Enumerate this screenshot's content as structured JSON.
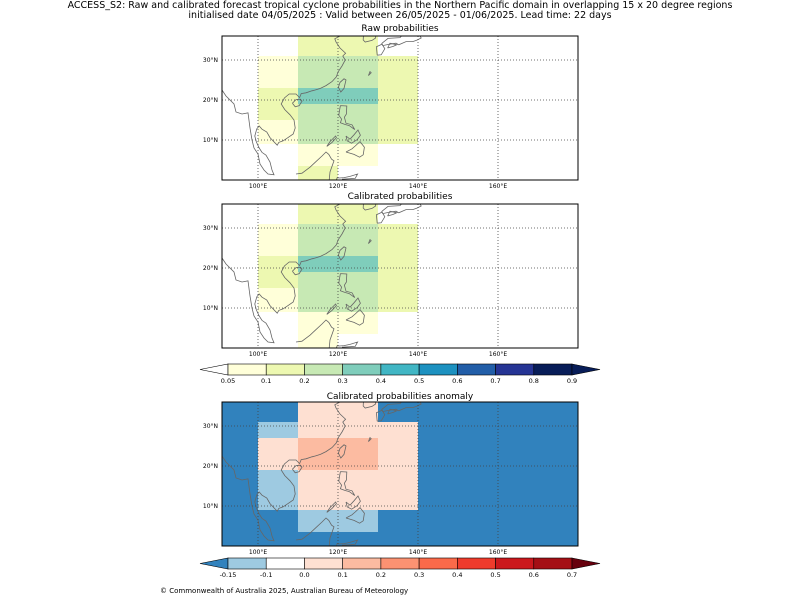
{
  "header": {
    "line1": "ACCESS_S2: Raw and calibrated forecast tropical cyclone probabilities in the Northern Pacific domain in overlapping 15 x 20 degree regions",
    "line2": "initialised date 04/05/2025 :  Valid between 26/05/2025 - 01/06/2025. Lead time: 22 days"
  },
  "credit": "© Commonwealth of Australia 2025, Australian Bureau of Meteorology",
  "chart_data": [
    {
      "type": "heatmap",
      "title": "Raw probabilities",
      "lon_ticks": [
        "100°E",
        "120°E",
        "140°E",
        "160°E"
      ],
      "lat_ticks": [
        "10°N",
        "20°N",
        "30°N"
      ],
      "x_bins": [
        "100-110°E",
        "110-120°E",
        "120-130°E",
        "130-140°E"
      ],
      "y_bins": [
        "32-38°N",
        "27-32°N",
        "22-27°N",
        "17-22°N",
        "12-17°N",
        "7-12°N",
        "2-7°N",
        "0-2°N"
      ],
      "values": [
        [
          null,
          0.15,
          0.15,
          null
        ],
        [
          0.05,
          0.25,
          0.25,
          0.15
        ],
        [
          0.05,
          0.25,
          0.25,
          0.15
        ],
        [
          0.15,
          0.35,
          0.35,
          0.15
        ],
        [
          0.15,
          0.25,
          0.25,
          0.15
        ],
        [
          0.05,
          0.25,
          0.25,
          0.15
        ],
        [
          null,
          0.05,
          0.05,
          null
        ],
        [
          null,
          0.15,
          null,
          null
        ]
      ]
    },
    {
      "type": "heatmap",
      "title": "Calibrated probabilities",
      "lon_ticks": [
        "100°E",
        "120°E",
        "140°E",
        "160°E"
      ],
      "lat_ticks": [
        "10°N",
        "20°N",
        "30°N"
      ],
      "x_bins": [
        "100-110°E",
        "110-120°E",
        "120-130°E",
        "130-140°E"
      ],
      "y_bins": [
        "32-38°N",
        "27-32°N",
        "22-27°N",
        "17-22°N",
        "12-17°N",
        "7-12°N",
        "2-7°N",
        "0-2°N"
      ],
      "values": [
        [
          null,
          0.15,
          0.15,
          null
        ],
        [
          0.05,
          0.25,
          0.25,
          0.15
        ],
        [
          0.05,
          0.25,
          0.25,
          0.15
        ],
        [
          0.15,
          0.35,
          0.35,
          0.15
        ],
        [
          0.15,
          0.25,
          0.25,
          0.15
        ],
        [
          0.05,
          0.25,
          0.25,
          0.15
        ],
        [
          null,
          0.05,
          0.05,
          null
        ],
        [
          null,
          0.05,
          null,
          null
        ]
      ],
      "colorbar": {
        "ticks": [
          "0.05",
          "0.1",
          "0.2",
          "0.3",
          "0.4",
          "0.5",
          "0.6",
          "0.7",
          "0.8",
          "0.9"
        ],
        "colors": [
          "#ffffd9",
          "#edf8b1",
          "#c7e9b4",
          "#7fcdbb",
          "#41b6c4",
          "#1d91c0",
          "#225ea8",
          "#253494",
          "#081d58"
        ],
        "under": "#ffffff",
        "over": "#081d58"
      }
    },
    {
      "type": "heatmap",
      "title": "Calibrated probabilities anomaly",
      "lon_ticks": [
        "100°E",
        "120°E",
        "140°E",
        "160°E"
      ],
      "lat_ticks": [
        "10°N",
        "20°N",
        "30°N"
      ],
      "x_bins": [
        "90-100°E",
        "100-110°E",
        "110-120°E",
        "120-130°E",
        "130-140°E",
        "140-178°E"
      ],
      "y_bins": [
        "35-38°N",
        "30-35°N",
        "25-30°N",
        "20-25°N",
        "15-20°N",
        "10-15°N",
        "5-10°N",
        "0-5°N"
      ],
      "values": [
        [
          -0.2,
          -0.2,
          0.0,
          0.0,
          -0.2,
          -0.2
        ],
        [
          -0.2,
          -0.12,
          0.05,
          0.05,
          0.0,
          -0.2
        ],
        [
          -0.2,
          0.0,
          0.15,
          0.15,
          0.0,
          -0.2
        ],
        [
          -0.2,
          0.0,
          0.15,
          0.15,
          0.0,
          -0.2
        ],
        [
          -0.2,
          -0.12,
          0.05,
          0.05,
          0.0,
          -0.2
        ],
        [
          -0.2,
          -0.12,
          0.05,
          0.05,
          0.0,
          -0.2
        ],
        [
          -0.2,
          -0.2,
          -0.12,
          -0.12,
          -0.2,
          -0.2
        ],
        [
          -0.2,
          -0.2,
          -0.2,
          -0.2,
          -0.2,
          -0.2
        ]
      ],
      "colorbar": {
        "ticks": [
          "-0.15",
          "-0.1",
          "0.0",
          "0.1",
          "0.2",
          "0.3",
          "0.4",
          "0.5",
          "0.6",
          "0.7"
        ],
        "colors": [
          "#9ecae1",
          "#ffffff",
          "#fee0d2",
          "#fcbba1",
          "#fc9272",
          "#fb6a4a",
          "#ef3b2c",
          "#cb181d",
          "#a50f15"
        ],
        "under": "#3182bd",
        "over": "#67000d"
      }
    }
  ]
}
